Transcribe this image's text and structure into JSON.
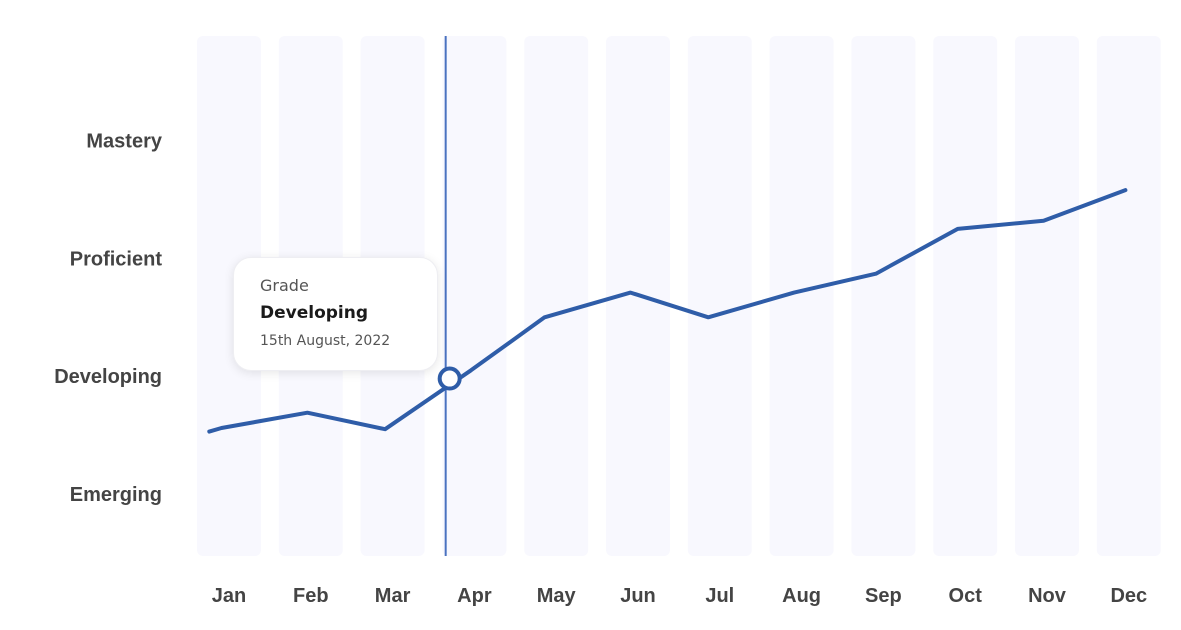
{
  "chart_data": {
    "type": "line",
    "categories": [
      "Jan",
      "Feb",
      "Mar",
      "Apr",
      "May",
      "Jun",
      "Jul",
      "Aug",
      "Sep",
      "Oct",
      "Nov",
      "Dec"
    ],
    "y_levels": [
      "Emerging",
      "Developing",
      "Proficient",
      "Mastery"
    ],
    "series": [
      {
        "points": [
          {
            "x": 0.15,
            "y": 0.53
          },
          {
            "x": 0.3,
            "y": 0.56
          },
          {
            "x": 1.35,
            "y": 0.69
          },
          {
            "x": 2.3,
            "y": 0.55
          },
          {
            "x": 3.35,
            "y": 1.05
          },
          {
            "x": 4.25,
            "y": 1.5
          },
          {
            "x": 5.3,
            "y": 1.71
          },
          {
            "x": 6.25,
            "y": 1.5
          },
          {
            "x": 7.3,
            "y": 1.71
          },
          {
            "x": 8.3,
            "y": 1.87
          },
          {
            "x": 9.3,
            "y": 2.25
          },
          {
            "x": 10.35,
            "y": 2.32
          },
          {
            "x": 11.35,
            "y": 2.58
          }
        ],
        "color": "#2f5da8"
      }
    ],
    "highlight": {
      "x": 3.04,
      "y": 0.98,
      "month": "Apr"
    },
    "tooltip": {
      "label": "Grade",
      "value": "Developing",
      "date": "15th August, 2022"
    },
    "colors": {
      "line": "#2f5da8",
      "band": "#f8f8fe",
      "cursor": "#4a72c0"
    },
    "grid": false,
    "legend": "none"
  }
}
